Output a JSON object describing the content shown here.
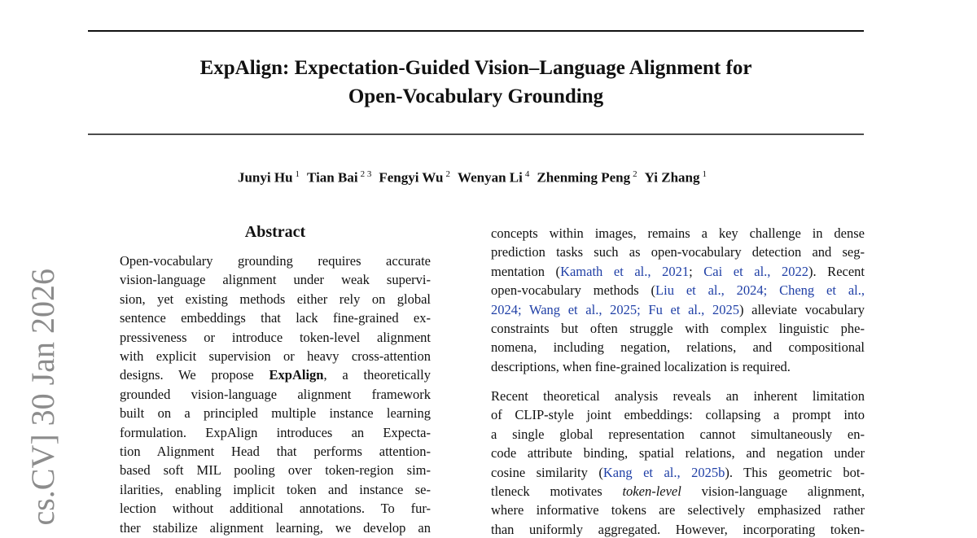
{
  "stamp": "cs.CV]  30 Jan 2026",
  "title": [
    "ExpAlign: Expectation-Guided Vision–Language Alignment for",
    "Open-Vocabulary Grounding"
  ],
  "authors": [
    {
      "name": "Junyi Hu",
      "affil": "1"
    },
    {
      "name": "Tian Bai",
      "affil": "2 3"
    },
    {
      "name": "Fengyi Wu",
      "affil": "2"
    },
    {
      "name": "Wenyan Li",
      "affil": "4"
    },
    {
      "name": "Zhenming Peng",
      "affil": "2"
    },
    {
      "name": "Yi Zhang",
      "affil": "1"
    }
  ],
  "abstract": {
    "heading": "Abstract",
    "lines": [
      [
        "Open-vocabulary grounding requires accurate"
      ],
      [
        "vision-language alignment under weak supervi-"
      ],
      [
        "sion, yet existing methods either rely on global"
      ],
      [
        "sentence embeddings that lack fine-grained ex-"
      ],
      [
        "pressiveness or introduce token-level alignment"
      ],
      [
        "with explicit supervision or heavy cross-attention"
      ],
      [
        "designs. We propose ",
        {
          "bold": "ExpAlign"
        },
        ", a theoretically"
      ],
      [
        "grounded vision-language alignment framework"
      ],
      [
        "built on a principled multiple instance learning"
      ],
      [
        "formulation. ExpAlign introduces an Expecta-"
      ],
      [
        "tion Alignment Head that performs attention-"
      ],
      [
        "based soft MIL pooling over token-region sim-"
      ],
      [
        "ilarities, enabling implicit token and instance se-"
      ],
      [
        "lection without additional annotations. To fur-"
      ],
      [
        "ther stabilize alignment learning, we develop an"
      ]
    ]
  },
  "body": {
    "paragraphs": [
      {
        "lines": [
          [
            "concepts within images, remains a key challenge in dense"
          ],
          [
            "prediction tasks such as open-vocabulary detection and seg-"
          ],
          [
            "mentation (",
            {
              "cite": "Kamath et al., 2021"
            },
            "; ",
            {
              "cite": "Cai et al., 2022"
            },
            "). Recent"
          ],
          [
            "open-vocabulary methods (",
            {
              "cite": "Liu et al., 2024; Cheng et al.,"
            }
          ],
          [
            {
              "cite": "2024; Wang et al., 2025; Fu et al., 2025"
            },
            ") alleviate vocabulary"
          ],
          [
            "constraints but often struggle with complex linguistic phe-"
          ],
          [
            "nomena, including negation, relations, and compositional"
          ],
          [
            "descriptions, when fine-grained localization is required."
          ]
        ]
      },
      {
        "lines": [
          [
            "Recent theoretical analysis reveals an inherent limitation"
          ],
          [
            "of CLIP-style joint embeddings: collapsing a prompt into"
          ],
          [
            "a single global representation cannot simultaneously en-"
          ],
          [
            "code attribute binding, spatial relations, and negation under"
          ],
          [
            "cosine similarity (",
            {
              "cite": "Kang et al., 2025b"
            },
            "). This geometric bot-"
          ],
          [
            "tleneck motivates ",
            {
              "italic": "token-level"
            },
            " vision-language alignment,"
          ],
          [
            "where informative tokens are selectively emphasized rather"
          ],
          [
            "than uniformly aggregated. However, incorporating token-"
          ]
        ]
      }
    ]
  }
}
